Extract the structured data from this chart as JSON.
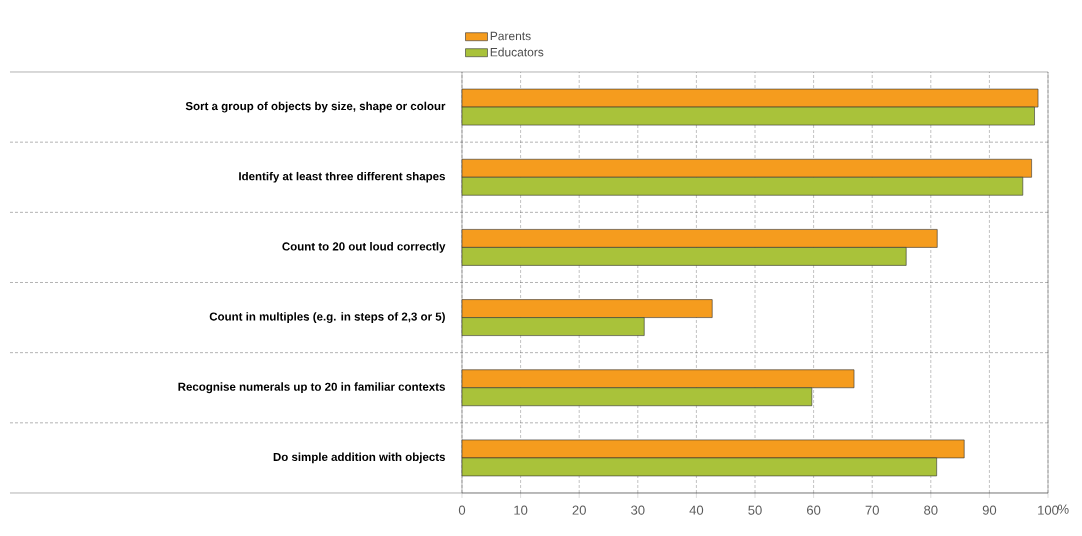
{
  "chart_data": {
    "type": "bar",
    "orientation": "horizontal",
    "categories": [
      "Sort a group of objects by size, shape or colour",
      "Identify at least three different shapes",
      "Count to 20 out loud correctly",
      "Count in multiples (e.g. in steps of 2,3 or 5)",
      "Recognise numerals up to 20 in familiar contexts",
      "Do simple addition with objects"
    ],
    "series": [
      {
        "name": "Parents",
        "color": "#f59c1e",
        "values": [
          98.3,
          97.2,
          81.1,
          42.7,
          66.9,
          85.7
        ]
      },
      {
        "name": "Educators",
        "color": "#a9c23a",
        "values": [
          97.7,
          95.7,
          75.8,
          31.1,
          59.7,
          81.0
        ]
      }
    ],
    "xlabel": "%",
    "xlim": [
      0,
      100
    ],
    "xticks": [
      0,
      10,
      20,
      30,
      40,
      50,
      60,
      70,
      80,
      90,
      100
    ],
    "grid": "x",
    "legend": "top"
  }
}
